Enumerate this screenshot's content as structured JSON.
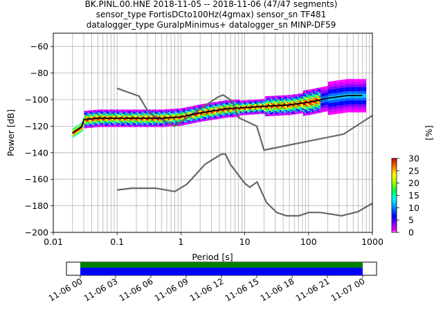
{
  "chart_data": {
    "type": "heatmap",
    "title": [
      "BK.PINL.00.HNE   2018-11-05 -- 2018-11-06  (47/47 segments)",
      "sensor_type FortisDCto100Hz(4gmax) sensor_sn TF481",
      "datalogger_type GuralpMinimus+ datalogger_sn MINP-DF59"
    ],
    "xlabel": "Period [s]",
    "ylabel": "Power [dB]",
    "xscale": "log",
    "xlim": [
      0.01,
      1000
    ],
    "ylim": [
      -200,
      -50
    ],
    "xticks": [
      {
        "value": 0.01,
        "label": "0.01"
      },
      {
        "value": 0.1,
        "label": "0.1"
      },
      {
        "value": 1,
        "label": "1"
      },
      {
        "value": 10,
        "label": "10"
      },
      {
        "value": 100,
        "label": "100"
      },
      {
        "value": 1000,
        "label": "1000"
      }
    ],
    "yticks": [
      -60,
      -80,
      -100,
      -120,
      -140,
      -160,
      -180,
      -200
    ],
    "grid": true,
    "colorbar": {
      "label": "[%]",
      "range": [
        0,
        30
      ],
      "ticks": [
        0,
        5,
        10,
        15,
        20,
        25,
        30
      ]
    },
    "mode_line": [
      [
        0.02,
        -125
      ],
      [
        0.025,
        -122
      ],
      [
        0.028,
        -120
      ],
      [
        0.03,
        -115
      ],
      [
        0.05,
        -114
      ],
      [
        0.1,
        -114
      ],
      [
        0.2,
        -114
      ],
      [
        0.5,
        -114
      ],
      [
        1,
        -113
      ],
      [
        2,
        -110
      ],
      [
        5,
        -107
      ],
      [
        10,
        -106
      ],
      [
        20,
        -105
      ],
      [
        50,
        -104
      ],
      [
        100,
        -102
      ],
      [
        200,
        -99
      ],
      [
        400,
        -97
      ],
      [
        700,
        -97
      ]
    ],
    "high_noise_model": [
      [
        0.1,
        -91.5
      ],
      [
        0.22,
        -97.4
      ],
      [
        0.32,
        -110.5
      ],
      [
        0.8,
        -120
      ],
      [
        3.8,
        -98
      ],
      [
        4.6,
        -96.5
      ],
      [
        6.3,
        -101
      ],
      [
        7.9,
        -113.5
      ],
      [
        15.4,
        -120
      ],
      [
        20,
        -138
      ],
      [
        354.8,
        -126
      ],
      [
        1000,
        -112
      ]
    ],
    "low_noise_model": [
      [
        0.1,
        -168
      ],
      [
        0.17,
        -166.7
      ],
      [
        0.4,
        -166.7
      ],
      [
        0.8,
        -169.2
      ],
      [
        1.24,
        -163.7
      ],
      [
        2.4,
        -148.6
      ],
      [
        4.3,
        -141.1
      ],
      [
        5,
        -141.1
      ],
      [
        6,
        -149
      ],
      [
        10,
        -163
      ],
      [
        12,
        -166
      ],
      [
        15.6,
        -162
      ],
      [
        21.9,
        -177.5
      ],
      [
        31.6,
        -185
      ],
      [
        45,
        -187.5
      ],
      [
        70,
        -187.5
      ],
      [
        101,
        -185
      ],
      [
        154,
        -185
      ],
      [
        328,
        -187.5
      ],
      [
        600,
        -184.4
      ],
      [
        1000,
        -178
      ]
    ],
    "timeline": {
      "tick_labels": [
        "11-06 00",
        "11-06 03",
        "11-06 06",
        "11-06 09",
        "11-06 12",
        "11-06 15",
        "11-06 18",
        "11-06 21",
        "11-07 00"
      ],
      "coverage": [
        0,
        1
      ]
    }
  }
}
